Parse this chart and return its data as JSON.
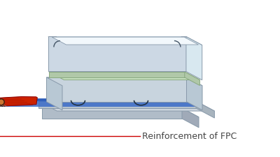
{
  "bg_color": "#ffffff",
  "label_text": "Reinforcement of FPC",
  "label_fontsize": 9,
  "label_color": "#444444",
  "callout_line_color": "#cc0000",
  "glass_top_fill": "#f2f8fc",
  "glass_top_inner": "#ffffff",
  "glass_side_fill": "#d8e8f0",
  "glass_frame_ec": "#8899aa",
  "glass_bezel_fill": "#ccd8e4",
  "glass_bezel_ec": "#8899aa",
  "green_top_fill": "#c8e0c0",
  "green_side_fill": "#b0c8a8",
  "green_ec": "#88a880",
  "body_top_fill": "#d8e0e8",
  "body_front_fill": "#c8d4de",
  "body_left_fill": "#b8c8d4",
  "body_ec": "#8899aa",
  "tray_top_fill": "#cdd5de",
  "tray_front_fill": "#b8c4ce",
  "tray_right_fill": "#a8b4be",
  "tray_ec": "#8899aa",
  "blue_top_fill": "#3a6bc8",
  "blue_front_fill": "#2a5ab8",
  "blue_alpha": 0.85,
  "base_top_fill": "#c0ccd8",
  "base_front_fill": "#b0bcc8",
  "base_right_fill": "#a0aab8",
  "base_ec": "#889aaa",
  "fpc_body_fill": "#cc2200",
  "fpc_ec": "#880000",
  "fpc_line_color": "#aa1100",
  "arc_color": "#223344",
  "corner_color": "#445566"
}
